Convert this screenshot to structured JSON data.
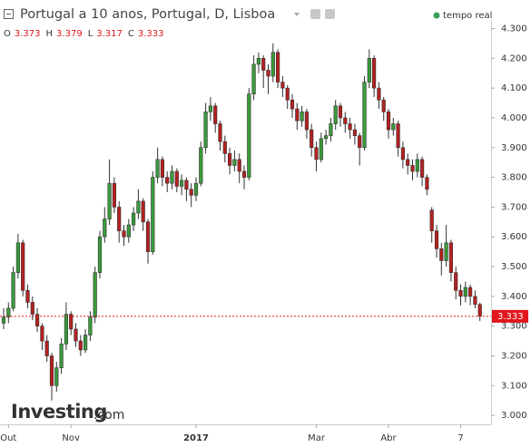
{
  "chart_data": {
    "type": "candlestick",
    "title": "Portugal a 10 anos, Portugal, D, Lisboa",
    "status": "tempo real",
    "watermark": [
      "Investing",
      ".com"
    ],
    "ohlc_keys": [
      "O",
      "H",
      "L",
      "C"
    ],
    "up_color": "#3a9a3a",
    "down_color": "#b52020",
    "last_color": "#e0161c",
    "categories": [
      null,
      "Out",
      null,
      null,
      null,
      null,
      null,
      null,
      null,
      null,
      null,
      null,
      null,
      null,
      "Nov",
      null,
      null,
      null,
      null,
      null,
      null,
      null,
      null,
      null,
      null,
      null,
      null,
      null,
      null,
      null,
      null,
      null,
      null,
      null,
      null,
      null,
      null,
      null,
      null,
      null,
      "2017",
      null,
      null,
      null,
      null,
      null,
      null,
      null,
      null,
      null,
      null,
      null,
      null,
      null,
      null,
      null,
      null,
      null,
      null,
      null,
      null,
      null,
      null,
      null,
      null,
      "Mar",
      null,
      null,
      null,
      null,
      null,
      null,
      null,
      null,
      null,
      null,
      null,
      null,
      null,
      null,
      "Abr",
      null,
      null,
      null,
      null,
      null,
      null,
      null,
      null,
      null,
      null,
      null,
      null,
      null,
      null,
      "7",
      null,
      null,
      null,
      null
    ],
    "open": [
      3.31,
      3.33,
      3.36,
      3.48,
      3.58,
      3.42,
      3.38,
      3.34,
      3.3,
      3.25,
      3.2,
      3.1,
      3.16,
      3.24,
      3.34,
      3.29,
      3.25,
      3.22,
      3.27,
      3.33,
      3.48,
      3.6,
      3.66,
      3.78,
      3.7,
      3.62,
      3.6,
      3.64,
      3.68,
      3.72,
      3.65,
      3.55,
      3.8,
      3.86,
      3.8,
      3.78,
      3.82,
      3.77,
      3.79,
      3.76,
      3.74,
      3.78,
      3.9,
      4.02,
      4.04,
      3.98,
      3.92,
      3.88,
      3.84,
      3.86,
      3.82,
      3.8,
      4.08,
      4.18,
      4.2,
      4.16,
      4.14,
      4.22,
      4.12,
      4.1,
      4.06,
      4.03,
      3.99,
      4.02,
      3.96,
      3.9,
      3.86,
      3.93,
      3.94,
      3.98,
      4.04,
      4.0,
      3.98,
      3.96,
      3.94,
      3.9,
      4.12,
      4.2,
      4.1,
      4.06,
      4.02,
      3.96,
      3.98,
      3.9,
      3.86,
      3.84,
      3.82,
      3.86,
      3.8,
      3.69,
      3.62,
      3.56,
      3.52,
      3.58,
      3.48,
      3.42,
      3.4,
      3.43,
      3.4,
      3.373
    ],
    "high": [
      3.36,
      3.38,
      3.5,
      3.61,
      3.59,
      3.44,
      3.4,
      3.36,
      3.31,
      3.27,
      3.21,
      3.18,
      3.26,
      3.38,
      3.35,
      3.31,
      3.27,
      3.29,
      3.35,
      3.5,
      3.62,
      3.7,
      3.86,
      3.8,
      3.72,
      3.64,
      3.66,
      3.7,
      3.76,
      3.73,
      3.66,
      3.82,
      3.9,
      3.87,
      3.82,
      3.84,
      3.83,
      3.81,
      3.8,
      3.78,
      3.8,
      3.92,
      4.05,
      4.07,
      4.05,
      3.99,
      3.94,
      3.9,
      3.89,
      3.88,
      3.84,
      4.1,
      4.21,
      4.22,
      4.21,
      4.18,
      4.25,
      4.23,
      4.14,
      4.11,
      4.08,
      4.05,
      4.04,
      4.03,
      3.98,
      3.92,
      3.95,
      3.96,
      4.0,
      4.06,
      4.05,
      4.02,
      4.0,
      3.98,
      3.95,
      4.14,
      4.23,
      4.21,
      4.12,
      4.07,
      4.03,
      4.0,
      3.99,
      3.92,
      3.88,
      3.86,
      3.88,
      3.87,
      3.81,
      3.7,
      3.64,
      3.58,
      3.64,
      3.59,
      3.5,
      3.44,
      3.45,
      3.44,
      3.42,
      3.379
    ],
    "low": [
      3.29,
      3.31,
      3.35,
      3.46,
      3.4,
      3.36,
      3.32,
      3.28,
      3.22,
      3.18,
      3.05,
      3.08,
      3.14,
      3.22,
      3.27,
      3.23,
      3.2,
      3.21,
      3.25,
      3.31,
      3.46,
      3.58,
      3.64,
      3.68,
      3.58,
      3.57,
      3.58,
      3.62,
      3.66,
      3.62,
      3.51,
      3.54,
      3.78,
      3.77,
      3.75,
      3.76,
      3.75,
      3.74,
      3.72,
      3.7,
      3.72,
      3.77,
      3.88,
      3.99,
      3.95,
      3.89,
      3.85,
      3.81,
      3.82,
      3.78,
      3.76,
      3.79,
      4.06,
      4.15,
      4.1,
      4.08,
      4.12,
      4.1,
      4.07,
      4.03,
      4.0,
      3.96,
      3.97,
      3.93,
      3.87,
      3.82,
      3.85,
      3.91,
      3.92,
      3.96,
      3.97,
      3.95,
      3.93,
      3.91,
      3.84,
      3.89,
      4.1,
      4.07,
      4.03,
      3.99,
      3.93,
      3.94,
      3.87,
      3.83,
      3.81,
      3.79,
      3.8,
      3.77,
      3.74,
      3.58,
      3.53,
      3.47,
      3.5,
      3.45,
      3.39,
      3.37,
      3.38,
      3.37,
      3.36,
      3.317
    ],
    "close": [
      3.33,
      3.36,
      3.48,
      3.58,
      3.42,
      3.38,
      3.34,
      3.3,
      3.25,
      3.2,
      3.1,
      3.16,
      3.24,
      3.34,
      3.29,
      3.25,
      3.22,
      3.27,
      3.33,
      3.48,
      3.6,
      3.66,
      3.78,
      3.7,
      3.62,
      3.6,
      3.64,
      3.68,
      3.72,
      3.65,
      3.55,
      3.8,
      3.86,
      3.8,
      3.78,
      3.82,
      3.77,
      3.79,
      3.76,
      3.74,
      3.78,
      3.9,
      4.02,
      4.04,
      3.98,
      3.92,
      3.88,
      3.84,
      3.86,
      3.82,
      3.8,
      4.08,
      4.18,
      4.2,
      4.16,
      4.14,
      4.22,
      4.12,
      4.1,
      4.06,
      4.03,
      3.99,
      4.02,
      3.96,
      3.9,
      3.86,
      3.93,
      3.94,
      3.98,
      4.04,
      4.0,
      3.98,
      3.96,
      3.94,
      3.9,
      4.12,
      4.2,
      4.1,
      4.06,
      4.02,
      3.96,
      3.98,
      3.9,
      3.86,
      3.84,
      3.82,
      3.86,
      3.8,
      3.76,
      3.62,
      3.56,
      3.52,
      3.58,
      3.48,
      3.42,
      3.4,
      3.43,
      3.4,
      3.373,
      3.333
    ],
    "ylim": [
      2.97,
      4.335
    ],
    "yticks": [
      {
        "value": 3.0,
        "label": "3.000"
      },
      {
        "value": 3.1,
        "label": "3.100"
      },
      {
        "value": 3.2,
        "label": "3.200"
      },
      {
        "value": 3.3,
        "label": "3.300"
      },
      {
        "value": 3.4,
        "label": "3.400"
      },
      {
        "value": 3.5,
        "label": "3.500"
      },
      {
        "value": 3.6,
        "label": "3.600"
      },
      {
        "value": 3.7,
        "label": "3.700"
      },
      {
        "value": 3.8,
        "label": "3.800"
      },
      {
        "value": 3.9,
        "label": "3.900"
      },
      {
        "value": 4.0,
        "label": "4.000"
      },
      {
        "value": 4.1,
        "label": "4.100"
      },
      {
        "value": 4.2,
        "label": "4.200"
      },
      {
        "value": 4.3,
        "label": "4.300"
      }
    ]
  }
}
